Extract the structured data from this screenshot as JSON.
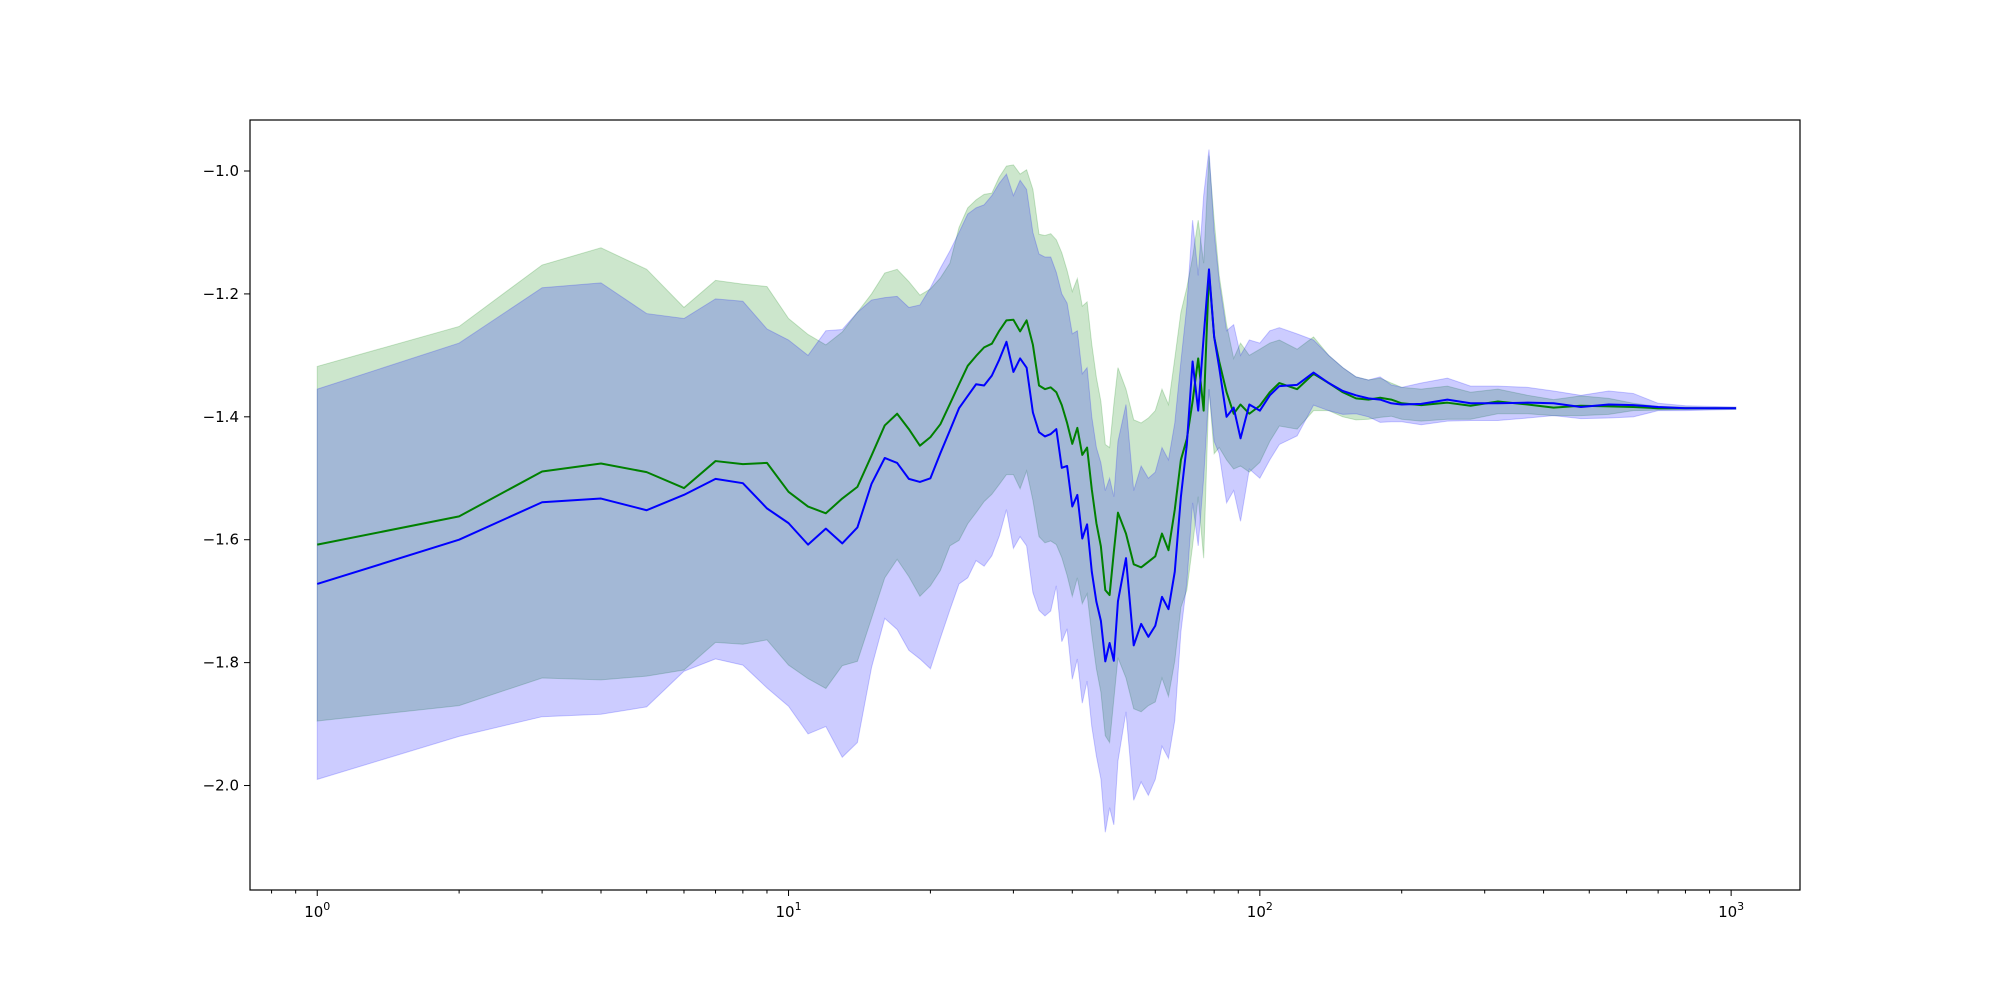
{
  "chart_data": {
    "type": "line",
    "title": "",
    "xlabel": "",
    "ylabel": "",
    "xscale": "log",
    "xlim": [
      0.72,
      1400
    ],
    "ylim": [
      -2.17,
      -0.917
    ],
    "grid": false,
    "legend": "none",
    "x_ticks": [
      {
        "value": 1,
        "base": "10",
        "exp": "0"
      },
      {
        "value": 10,
        "base": "10",
        "exp": "1"
      },
      {
        "value": 100,
        "base": "10",
        "exp": "2"
      },
      {
        "value": 1000,
        "base": "10",
        "exp": "3"
      }
    ],
    "y_ticks": [
      {
        "value": -1.0,
        "label": "−1.0"
      },
      {
        "value": -1.2,
        "label": "−1.2"
      },
      {
        "value": -1.4,
        "label": "−1.4"
      },
      {
        "value": -1.6,
        "label": "−1.6"
      },
      {
        "value": -1.8,
        "label": "−1.8"
      },
      {
        "value": -2.0,
        "label": "−2.0"
      }
    ],
    "series": [
      {
        "color": "#008000",
        "band_color": "#008000",
        "band_opacity": 0.2,
        "x": [
          1,
          2,
          3,
          4,
          5,
          6,
          7,
          8,
          9,
          10,
          11,
          12,
          13,
          14,
          15,
          16,
          17,
          18,
          19,
          20,
          21,
          22,
          23,
          24,
          25,
          26,
          27,
          28,
          29,
          30,
          31,
          32,
          33,
          34,
          35,
          36,
          37,
          38,
          39,
          40,
          41,
          42,
          43,
          44,
          45,
          46,
          47,
          48,
          49,
          50,
          52,
          54,
          56,
          58,
          60,
          62,
          64,
          66,
          68,
          70,
          72,
          74,
          76,
          78,
          80,
          82,
          85,
          88,
          91,
          95,
          100,
          105,
          110,
          120,
          130,
          140,
          150,
          160,
          170,
          180,
          190,
          200,
          220,
          250,
          280,
          320,
          370,
          420,
          480,
          550,
          620,
          700,
          800,
          900,
          1024
        ],
        "y": [
          -1.608,
          -1.562,
          -1.489,
          -1.476,
          -1.49,
          -1.516,
          -1.472,
          -1.477,
          -1.475,
          -1.522,
          -1.546,
          -1.557,
          -1.533,
          -1.514,
          -1.463,
          -1.414,
          -1.395,
          -1.42,
          -1.447,
          -1.433,
          -1.412,
          -1.379,
          -1.347,
          -1.317,
          -1.301,
          -1.287,
          -1.281,
          -1.26,
          -1.243,
          -1.242,
          -1.261,
          -1.243,
          -1.283,
          -1.349,
          -1.355,
          -1.352,
          -1.36,
          -1.381,
          -1.41,
          -1.444,
          -1.418,
          -1.462,
          -1.45,
          -1.518,
          -1.573,
          -1.611,
          -1.682,
          -1.69,
          -1.62,
          -1.556,
          -1.59,
          -1.64,
          -1.645,
          -1.636,
          -1.627,
          -1.59,
          -1.617,
          -1.551,
          -1.47,
          -1.436,
          -1.375,
          -1.305,
          -1.39,
          -1.165,
          -1.27,
          -1.31,
          -1.36,
          -1.395,
          -1.38,
          -1.395,
          -1.382,
          -1.36,
          -1.345,
          -1.355,
          -1.33,
          -1.345,
          -1.36,
          -1.37,
          -1.372,
          -1.369,
          -1.372,
          -1.378,
          -1.381,
          -1.377,
          -1.382,
          -1.375,
          -1.38,
          -1.385,
          -1.382,
          -1.383,
          -1.384,
          -1.386,
          -1.386,
          -1.386,
          -1.386
        ],
        "upper": [
          -1.318,
          -1.253,
          -1.153,
          -1.125,
          -1.16,
          -1.222,
          -1.178,
          -1.184,
          -1.188,
          -1.24,
          -1.266,
          -1.283,
          -1.262,
          -1.23,
          -1.2,
          -1.166,
          -1.16,
          -1.18,
          -1.202,
          -1.192,
          -1.174,
          -1.15,
          -1.092,
          -1.06,
          -1.047,
          -1.038,
          -1.036,
          -1.01,
          -0.992,
          -0.99,
          -1.005,
          -0.998,
          -1.03,
          -1.103,
          -1.105,
          -1.102,
          -1.112,
          -1.133,
          -1.162,
          -1.196,
          -1.175,
          -1.22,
          -1.213,
          -1.282,
          -1.336,
          -1.375,
          -1.445,
          -1.45,
          -1.38,
          -1.32,
          -1.355,
          -1.405,
          -1.41,
          -1.402,
          -1.39,
          -1.355,
          -1.38,
          -1.305,
          -1.23,
          -1.19,
          -1.14,
          -1.08,
          -1.15,
          -0.975,
          -1.08,
          -1.17,
          -1.25,
          -1.305,
          -1.28,
          -1.3,
          -1.29,
          -1.28,
          -1.275,
          -1.29,
          -1.27,
          -1.3,
          -1.32,
          -1.335,
          -1.34,
          -1.337,
          -1.345,
          -1.352,
          -1.355,
          -1.35,
          -1.36,
          -1.355,
          -1.365,
          -1.372,
          -1.366,
          -1.37,
          -1.378,
          -1.383,
          -1.384,
          -1.385,
          -1.385
        ],
        "lower": [
          -1.895,
          -1.87,
          -1.825,
          -1.828,
          -1.822,
          -1.812,
          -1.767,
          -1.77,
          -1.763,
          -1.804,
          -1.826,
          -1.842,
          -1.805,
          -1.798,
          -1.728,
          -1.662,
          -1.632,
          -1.66,
          -1.692,
          -1.675,
          -1.65,
          -1.61,
          -1.601,
          -1.574,
          -1.556,
          -1.538,
          -1.526,
          -1.51,
          -1.494,
          -1.494,
          -1.517,
          -1.488,
          -1.536,
          -1.595,
          -1.605,
          -1.602,
          -1.608,
          -1.629,
          -1.658,
          -1.692,
          -1.662,
          -1.704,
          -1.688,
          -1.755,
          -1.81,
          -1.848,
          -1.919,
          -1.93,
          -1.86,
          -1.792,
          -1.825,
          -1.875,
          -1.88,
          -1.87,
          -1.864,
          -1.825,
          -1.855,
          -1.797,
          -1.71,
          -1.682,
          -1.61,
          -1.53,
          -1.63,
          -1.355,
          -1.46,
          -1.45,
          -1.47,
          -1.485,
          -1.48,
          -1.49,
          -1.474,
          -1.44,
          -1.415,
          -1.42,
          -1.39,
          -1.39,
          -1.4,
          -1.405,
          -1.404,
          -1.401,
          -1.399,
          -1.404,
          -1.407,
          -1.404,
          -1.404,
          -1.395,
          -1.395,
          -1.398,
          -1.398,
          -1.396,
          -1.39,
          -1.389,
          -1.388,
          -1.387,
          -1.387
        ]
      },
      {
        "color": "#0000ff",
        "band_color": "#0000ff",
        "band_opacity": 0.2,
        "x": [
          1,
          2,
          3,
          4,
          5,
          6,
          7,
          8,
          9,
          10,
          11,
          12,
          13,
          14,
          15,
          16,
          17,
          18,
          19,
          20,
          21,
          22,
          23,
          24,
          25,
          26,
          27,
          28,
          29,
          30,
          31,
          32,
          33,
          34,
          35,
          36,
          37,
          38,
          39,
          40,
          41,
          42,
          43,
          44,
          45,
          46,
          47,
          48,
          49,
          50,
          52,
          54,
          56,
          58,
          60,
          62,
          64,
          66,
          68,
          70,
          72,
          74,
          76,
          78,
          80,
          82,
          85,
          88,
          91,
          95,
          100,
          105,
          110,
          120,
          130,
          140,
          150,
          160,
          170,
          180,
          190,
          200,
          220,
          250,
          280,
          320,
          370,
          420,
          480,
          550,
          620,
          700,
          800,
          900,
          1024
        ],
        "y": [
          -1.672,
          -1.6,
          -1.539,
          -1.533,
          -1.552,
          -1.527,
          -1.501,
          -1.508,
          -1.549,
          -1.573,
          -1.608,
          -1.582,
          -1.606,
          -1.58,
          -1.509,
          -1.467,
          -1.475,
          -1.501,
          -1.506,
          -1.5,
          -1.459,
          -1.422,
          -1.386,
          -1.366,
          -1.347,
          -1.349,
          -1.333,
          -1.307,
          -1.278,
          -1.327,
          -1.305,
          -1.32,
          -1.393,
          -1.425,
          -1.432,
          -1.428,
          -1.42,
          -1.483,
          -1.48,
          -1.546,
          -1.527,
          -1.598,
          -1.575,
          -1.652,
          -1.701,
          -1.732,
          -1.798,
          -1.768,
          -1.797,
          -1.7,
          -1.63,
          -1.772,
          -1.737,
          -1.758,
          -1.74,
          -1.693,
          -1.713,
          -1.652,
          -1.53,
          -1.445,
          -1.31,
          -1.39,
          -1.27,
          -1.16,
          -1.27,
          -1.32,
          -1.4,
          -1.385,
          -1.435,
          -1.38,
          -1.39,
          -1.365,
          -1.35,
          -1.348,
          -1.328,
          -1.345,
          -1.358,
          -1.365,
          -1.37,
          -1.372,
          -1.378,
          -1.38,
          -1.379,
          -1.372,
          -1.378,
          -1.378,
          -1.377,
          -1.378,
          -1.384,
          -1.38,
          -1.381,
          -1.384,
          -1.386,
          -1.386,
          -1.386
        ],
        "upper": [
          -1.355,
          -1.28,
          -1.19,
          -1.182,
          -1.232,
          -1.24,
          -1.208,
          -1.212,
          -1.257,
          -1.275,
          -1.3,
          -1.26,
          -1.258,
          -1.23,
          -1.21,
          -1.206,
          -1.204,
          -1.222,
          -1.218,
          -1.19,
          -1.158,
          -1.13,
          -1.1,
          -1.07,
          -1.06,
          -1.055,
          -1.04,
          -1.02,
          -1.005,
          -1.04,
          -1.015,
          -1.03,
          -1.1,
          -1.135,
          -1.14,
          -1.14,
          -1.165,
          -1.2,
          -1.215,
          -1.265,
          -1.26,
          -1.33,
          -1.32,
          -1.4,
          -1.45,
          -1.475,
          -1.52,
          -1.5,
          -1.53,
          -1.44,
          -1.38,
          -1.52,
          -1.48,
          -1.5,
          -1.49,
          -1.45,
          -1.47,
          -1.41,
          -1.31,
          -1.22,
          -1.08,
          -1.17,
          -1.04,
          -0.965,
          -1.1,
          -1.18,
          -1.26,
          -1.25,
          -1.3,
          -1.275,
          -1.28,
          -1.26,
          -1.255,
          -1.265,
          -1.275,
          -1.3,
          -1.32,
          -1.335,
          -1.34,
          -1.335,
          -1.348,
          -1.352,
          -1.345,
          -1.337,
          -1.35,
          -1.35,
          -1.352,
          -1.358,
          -1.365,
          -1.358,
          -1.362,
          -1.378,
          -1.382,
          -1.383,
          -1.384
        ],
        "lower": [
          -1.99,
          -1.92,
          -1.888,
          -1.884,
          -1.872,
          -1.814,
          -1.794,
          -1.804,
          -1.841,
          -1.871,
          -1.916,
          -1.904,
          -1.954,
          -1.93,
          -1.808,
          -1.728,
          -1.746,
          -1.78,
          -1.794,
          -1.81,
          -1.76,
          -1.714,
          -1.672,
          -1.662,
          -1.634,
          -1.643,
          -1.626,
          -1.594,
          -1.551,
          -1.614,
          -1.595,
          -1.61,
          -1.686,
          -1.715,
          -1.724,
          -1.716,
          -1.675,
          -1.766,
          -1.745,
          -1.827,
          -1.794,
          -1.866,
          -1.83,
          -1.904,
          -1.952,
          -1.989,
          -2.076,
          -2.036,
          -2.064,
          -1.96,
          -1.88,
          -2.024,
          -1.994,
          -2.016,
          -1.99,
          -1.936,
          -1.956,
          -1.894,
          -1.75,
          -1.67,
          -1.54,
          -1.61,
          -1.5,
          -1.355,
          -1.44,
          -1.46,
          -1.54,
          -1.52,
          -1.57,
          -1.485,
          -1.5,
          -1.47,
          -1.445,
          -1.431,
          -1.381,
          -1.39,
          -1.396,
          -1.395,
          -1.4,
          -1.409,
          -1.408,
          -1.408,
          -1.413,
          -1.407,
          -1.406,
          -1.406,
          -1.402,
          -1.398,
          -1.403,
          -1.402,
          -1.4,
          -1.39,
          -1.39,
          -1.389,
          -1.388
        ]
      }
    ]
  }
}
